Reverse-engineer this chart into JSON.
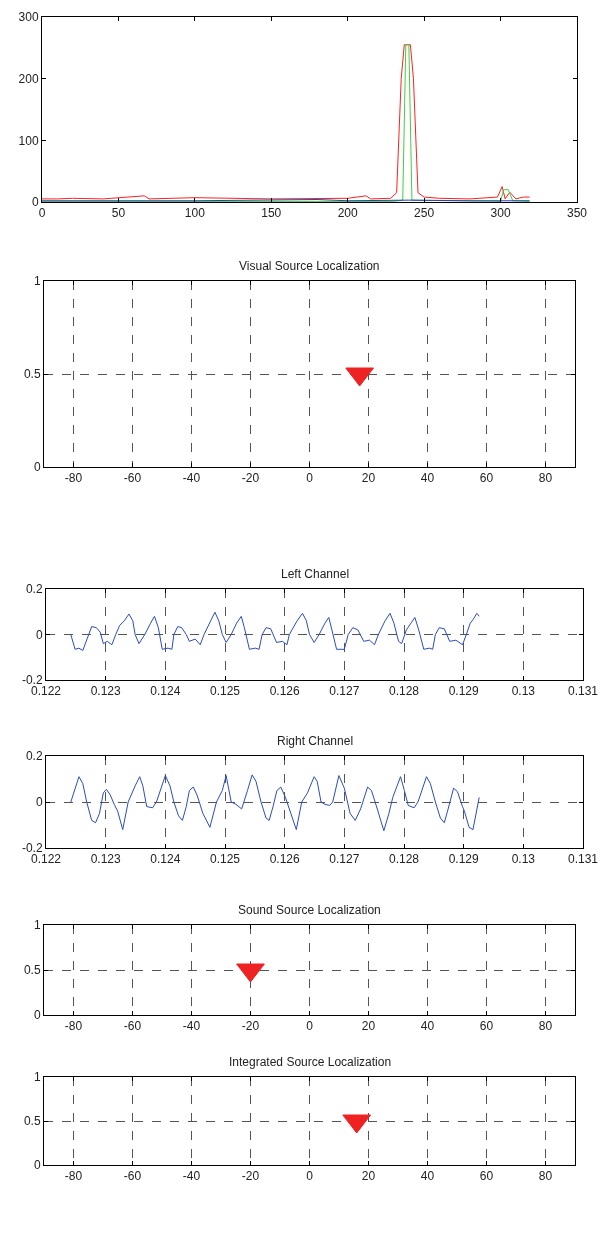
{
  "chart_data": [
    {
      "type": "line",
      "xlim": [
        0,
        350
      ],
      "ylim": [
        0,
        300
      ],
      "xticks": [
        0,
        50,
        100,
        150,
        200,
        250,
        300,
        350
      ],
      "yticks": [
        0,
        100,
        200,
        300
      ],
      "grid": false,
      "series": [
        {
          "color": "#ff2020",
          "x": [
            0,
            10,
            20,
            40,
            67,
            70,
            100,
            150,
            200,
            212,
            215,
            228,
            232,
            235,
            237,
            241,
            243,
            246,
            250,
            260,
            280,
            298,
            301,
            303,
            306,
            310,
            315,
            319
          ],
          "values": [
            5,
            5,
            6,
            5,
            10,
            5,
            7,
            5,
            6,
            10,
            5,
            6,
            15,
            200,
            255,
            255,
            200,
            15,
            8,
            6,
            5,
            8,
            25,
            5,
            16,
            5,
            8,
            8
          ]
        },
        {
          "color": "#44cc44",
          "x": [
            0,
            230,
            236,
            238,
            240,
            242,
            300,
            302,
            305,
            308,
            319
          ],
          "values": [
            1,
            1,
            3,
            255,
            255,
            3,
            1,
            20,
            20,
            2,
            1
          ]
        },
        {
          "color": "#2040c0",
          "x": [
            0,
            100,
            180,
            200,
            240,
            280,
            319
          ],
          "values": [
            2,
            2,
            4,
            2,
            3,
            2,
            2
          ]
        }
      ]
    },
    {
      "type": "scatter",
      "title": "Visual Source Localization",
      "xlim": [
        -90,
        90
      ],
      "ylim": [
        0,
        1
      ],
      "xticks": [
        -80,
        -60,
        -40,
        -20,
        0,
        20,
        40,
        60,
        80
      ],
      "yticks": [
        0,
        0.5,
        1
      ],
      "grid": true,
      "marker": "triangle",
      "series": [
        {
          "color": "#ee2222",
          "x": [
            17
          ],
          "values": [
            0.5
          ]
        }
      ]
    },
    {
      "type": "line",
      "title": "Left Channel",
      "xlim": [
        0.122,
        0.131
      ],
      "ylim": [
        -0.2,
        0.2
      ],
      "xticks": [
        0.122,
        0.123,
        0.124,
        0.125,
        0.126,
        0.127,
        0.128,
        0.129,
        0.13,
        0.131
      ],
      "yticks": [
        -0.2,
        0,
        0.2
      ],
      "grid": true,
      "series": [
        {
          "color": "#2a4dbd",
          "x": [
            0.122416,
            0.122487,
            0.122552,
            0.122617,
            0.122766,
            0.122844,
            0.122909,
            0.122961,
            0.123026,
            0.123104,
            0.123169,
            0.123234,
            0.123312,
            0.12339,
            0.123455,
            0.123494,
            0.123558,
            0.123656,
            0.123753,
            0.123818,
            0.123883,
            0.123948,
            0.124045,
            0.12411,
            0.124143,
            0.124208,
            0.124273,
            0.124351,
            0.124403,
            0.1245,
            0.124584,
            0.124649,
            0.12476,
            0.124831,
            0.124896,
            0.124955,
            0.125019,
            0.125104,
            0.125195,
            0.125273,
            0.125325,
            0.125409,
            0.125506,
            0.125571,
            0.125623,
            0.125688,
            0.125766,
            0.125864,
            0.125961,
            0.126039,
            0.126078,
            0.126208,
            0.126299,
            0.126364,
            0.126416,
            0.126494,
            0.126578,
            0.126675,
            0.12674,
            0.126792,
            0.12687,
            0.127,
            0.127065,
            0.127143,
            0.127227,
            0.127325,
            0.127422,
            0.127506,
            0.127571,
            0.127682,
            0.127766,
            0.127831,
            0.127909,
            0.127961,
            0.128039,
            0.128117,
            0.128182,
            0.128247,
            0.128331,
            0.128429,
            0.128481,
            0.128526,
            0.128591,
            0.128675,
            0.128766,
            0.12887,
            0.128981,
            0.129045,
            0.12911,
            0.129156,
            0.129221,
            0.12926
          ],
          "values": [
            0,
            -0.065,
            -0.06,
            -0.07,
            0.035,
            0.03,
            0.01,
            -0.04,
            -0.03,
            -0.045,
            0,
            0.04,
            0.06,
            0.09,
            0.06,
            0,
            -0.04,
            0,
            0.05,
            0.08,
            0.03,
            -0.065,
            -0.06,
            -0.065,
            0,
            0.035,
            0.03,
            0,
            -0.03,
            -0.02,
            -0.045,
            0,
            0.06,
            0.098,
            0.06,
            0,
            -0.035,
            0,
            0.05,
            0.08,
            0.03,
            -0.065,
            -0.06,
            -0.065,
            0,
            0.03,
            0.025,
            -0.035,
            -0.03,
            -0.045,
            0,
            0.06,
            0.093,
            0.06,
            0,
            -0.035,
            0,
            0.05,
            0.075,
            0.02,
            -0.065,
            -0.065,
            0,
            0.03,
            0.02,
            -0.03,
            -0.025,
            -0.045,
            0,
            0.06,
            0.093,
            0.05,
            -0.03,
            -0.04,
            0.02,
            0.05,
            0.075,
            0.02,
            -0.065,
            -0.06,
            -0.065,
            0,
            0.03,
            0.025,
            -0.03,
            -0.025,
            -0.045,
            0,
            0.05,
            0.065,
            0.093,
            0.08
          ]
        }
      ]
    },
    {
      "type": "line",
      "title": "Right Channel",
      "xlim": [
        0.122,
        0.131
      ],
      "ylim": [
        -0.2,
        0.2
      ],
      "xticks": [
        0.122,
        0.123,
        0.124,
        0.125,
        0.126,
        0.127,
        0.128,
        0.129,
        0.13,
        0.131
      ],
      "yticks": [
        -0.2,
        0,
        0.2
      ],
      "grid": true,
      "series": [
        {
          "color": "#2a4dbd",
          "x": [
            0.122416,
            0.122552,
            0.122617,
            0.122682,
            0.122766,
            0.122831,
            0.122896,
            0.122961,
            0.123013,
            0.123078,
            0.123143,
            0.123201,
            0.123286,
            0.123377,
            0.123494,
            0.123571,
            0.123623,
            0.123688,
            0.123786,
            0.123851,
            0.124,
            0.124078,
            0.124143,
            0.124221,
            0.124286,
            0.124351,
            0.124403,
            0.124468,
            0.124532,
            0.12463,
            0.124747,
            0.124857,
            0.124955,
            0.125019,
            0.125104,
            0.125182,
            0.125279,
            0.125377,
            0.125455,
            0.125519,
            0.125604,
            0.125688,
            0.12574,
            0.125805,
            0.12587,
            0.125935,
            0.126013,
            0.126104,
            0.126195,
            0.126286,
            0.126383,
            0.126494,
            0.126545,
            0.12661,
            0.126675,
            0.126753,
            0.126805,
            0.126909,
            0.127,
            0.127097,
            0.127182,
            0.127273,
            0.12739,
            0.127455,
            0.127552,
            0.127662,
            0.127747,
            0.127812,
            0.127942,
            0.128006,
            0.128071,
            0.128169,
            0.128234,
            0.128377,
            0.128442,
            0.128526,
            0.12861,
            0.128675,
            0.12874,
            0.128831,
            0.128896,
            0.128981,
            0.129013,
            0.129091,
            0.129156,
            0.12926
          ],
          "values": [
            0,
            0.11,
            0.08,
            0,
            -0.08,
            -0.09,
            -0.05,
            0.04,
            0.055,
            0.03,
            -0.01,
            -0.04,
            -0.12,
            0,
            0.07,
            0.11,
            0.07,
            -0.02,
            -0.025,
            0,
            0.115,
            0.07,
            0,
            -0.06,
            -0.08,
            -0.02,
            0.05,
            0.065,
            0.03,
            -0.05,
            -0.11,
            0,
            0.05,
            0.115,
            0,
            -0.01,
            -0.03,
            0.05,
            0.118,
            0.09,
            0,
            -0.07,
            -0.08,
            -0.02,
            0.05,
            0.065,
            0.02,
            -0.05,
            -0.12,
            0,
            0.04,
            0.11,
            0.09,
            0,
            -0.01,
            -0.015,
            0,
            0.115,
            0.06,
            -0.05,
            -0.08,
            -0.03,
            0.065,
            0.05,
            -0.03,
            -0.125,
            -0.05,
            0.02,
            0.11,
            0.05,
            -0.015,
            -0.025,
            0,
            0.11,
            0.08,
            0,
            -0.07,
            -0.09,
            -0.03,
            0.06,
            0.045,
            -0.02,
            -0.04,
            -0.11,
            -0.12,
            0.02
          ]
        }
      ]
    },
    {
      "type": "scatter",
      "title": "Sound Source Localization",
      "xlim": [
        -90,
        90
      ],
      "ylim": [
        0,
        1
      ],
      "xticks": [
        -80,
        -60,
        -40,
        -20,
        0,
        20,
        40,
        60,
        80
      ],
      "yticks": [
        0,
        0.5,
        1
      ],
      "grid": true,
      "marker": "triangle",
      "series": [
        {
          "color": "#ee2222",
          "x": [
            -20
          ],
          "values": [
            0.5
          ]
        }
      ]
    },
    {
      "type": "scatter",
      "title": "Integrated Source Localization",
      "xlim": [
        -90,
        90
      ],
      "ylim": [
        0,
        1
      ],
      "xticks": [
        -80,
        -60,
        -40,
        -20,
        0,
        20,
        40,
        60,
        80
      ],
      "yticks": [
        0,
        0.5,
        1
      ],
      "grid": true,
      "marker": "triangle",
      "series": [
        {
          "color": "#ee2222",
          "x": [
            16
          ],
          "values": [
            0.5
          ]
        }
      ]
    }
  ]
}
